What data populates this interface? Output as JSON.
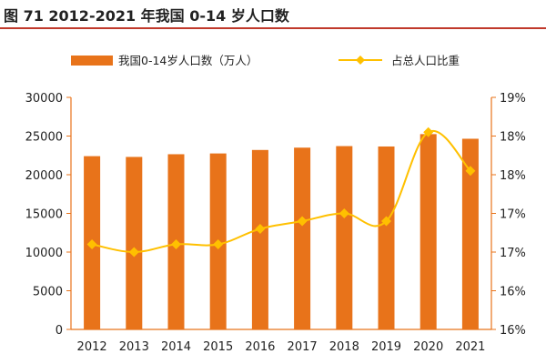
{
  "figure_title": "图 71 2012-2021 年我国 0-14 岁人口数",
  "colors": {
    "bar": "#E8731A",
    "line": "#FFC000",
    "title_rule": "#c0392b"
  },
  "chart_data": {
    "type": "bar",
    "title": "",
    "categories": [
      "2012",
      "2013",
      "2014",
      "2015",
      "2016",
      "2017",
      "2018",
      "2019",
      "2020",
      "2021"
    ],
    "series": [
      {
        "name": "我国0-14岁人口数（万人）",
        "type": "bar",
        "axis": "left",
        "values": [
          22400,
          22300,
          22650,
          22750,
          23200,
          23500,
          23700,
          23650,
          25250,
          24650
        ]
      },
      {
        "name": "占总人口比重",
        "type": "line",
        "axis": "right",
        "values": [
          16.6,
          16.5,
          16.6,
          16.6,
          16.8,
          16.9,
          17.0,
          16.9,
          18.05,
          17.55
        ]
      }
    ],
    "y_left": {
      "min": 0,
      "max": 30000,
      "ticks": [
        0,
        5000,
        10000,
        15000,
        20000,
        25000,
        30000
      ],
      "tick_labels": [
        "0",
        "5000",
        "10000",
        "15000",
        "20000",
        "25000",
        "30000"
      ]
    },
    "y_right": {
      "min": 15.5,
      "max": 18.5,
      "ticks": [
        15.5,
        16,
        16.5,
        17,
        17.5,
        18,
        18.5
      ],
      "tick_labels": [
        "16%",
        "16%",
        "17%",
        "17%",
        "18%",
        "18%",
        "19%"
      ]
    },
    "legend": "top-center",
    "grid": false
  }
}
